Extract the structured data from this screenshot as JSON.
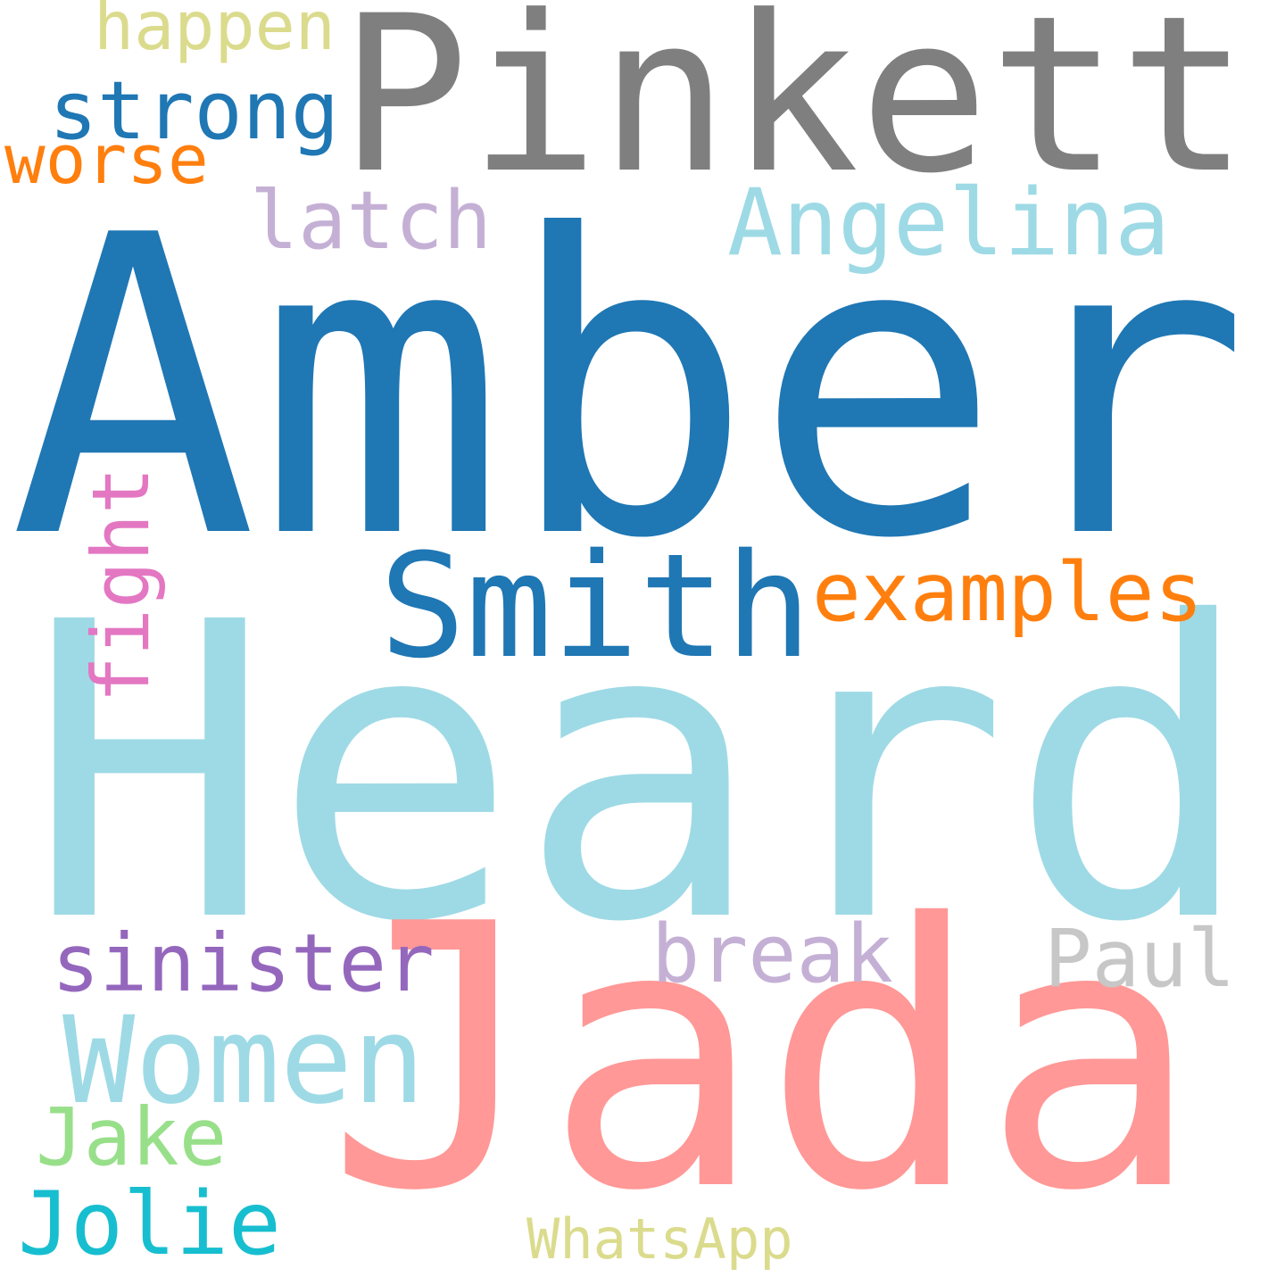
{
  "words": [
    {
      "text": "Amber",
      "color": "#1f77b4"
    },
    {
      "text": "Heard",
      "color": "#9edae5"
    },
    {
      "text": "Jada",
      "color": "#ff9896"
    },
    {
      "text": "Pinkett",
      "color": "#7f7f7f"
    },
    {
      "text": "Smith",
      "color": "#1f77b4"
    },
    {
      "text": "examples",
      "color": "#ff7f0e"
    },
    {
      "text": "Angelina",
      "color": "#9edae5"
    },
    {
      "text": "latch",
      "color": "#c5b0d5"
    },
    {
      "text": "strong",
      "color": "#1f77b4"
    },
    {
      "text": "worse",
      "color": "#ff7f0e"
    },
    {
      "text": "happen",
      "color": "#dbdb8d"
    },
    {
      "text": "fight",
      "color": "#e377c2"
    },
    {
      "text": "sinister",
      "color": "#9467bd"
    },
    {
      "text": "break",
      "color": "#c5b0d5"
    },
    {
      "text": "Paul",
      "color": "#c7c7c7"
    },
    {
      "text": "Women",
      "color": "#9edae5"
    },
    {
      "text": "Jake",
      "color": "#98df8a"
    },
    {
      "text": "Jolie",
      "color": "#17becf"
    },
    {
      "text": "WhatsApp",
      "color": "#dbdb8d"
    }
  ]
}
